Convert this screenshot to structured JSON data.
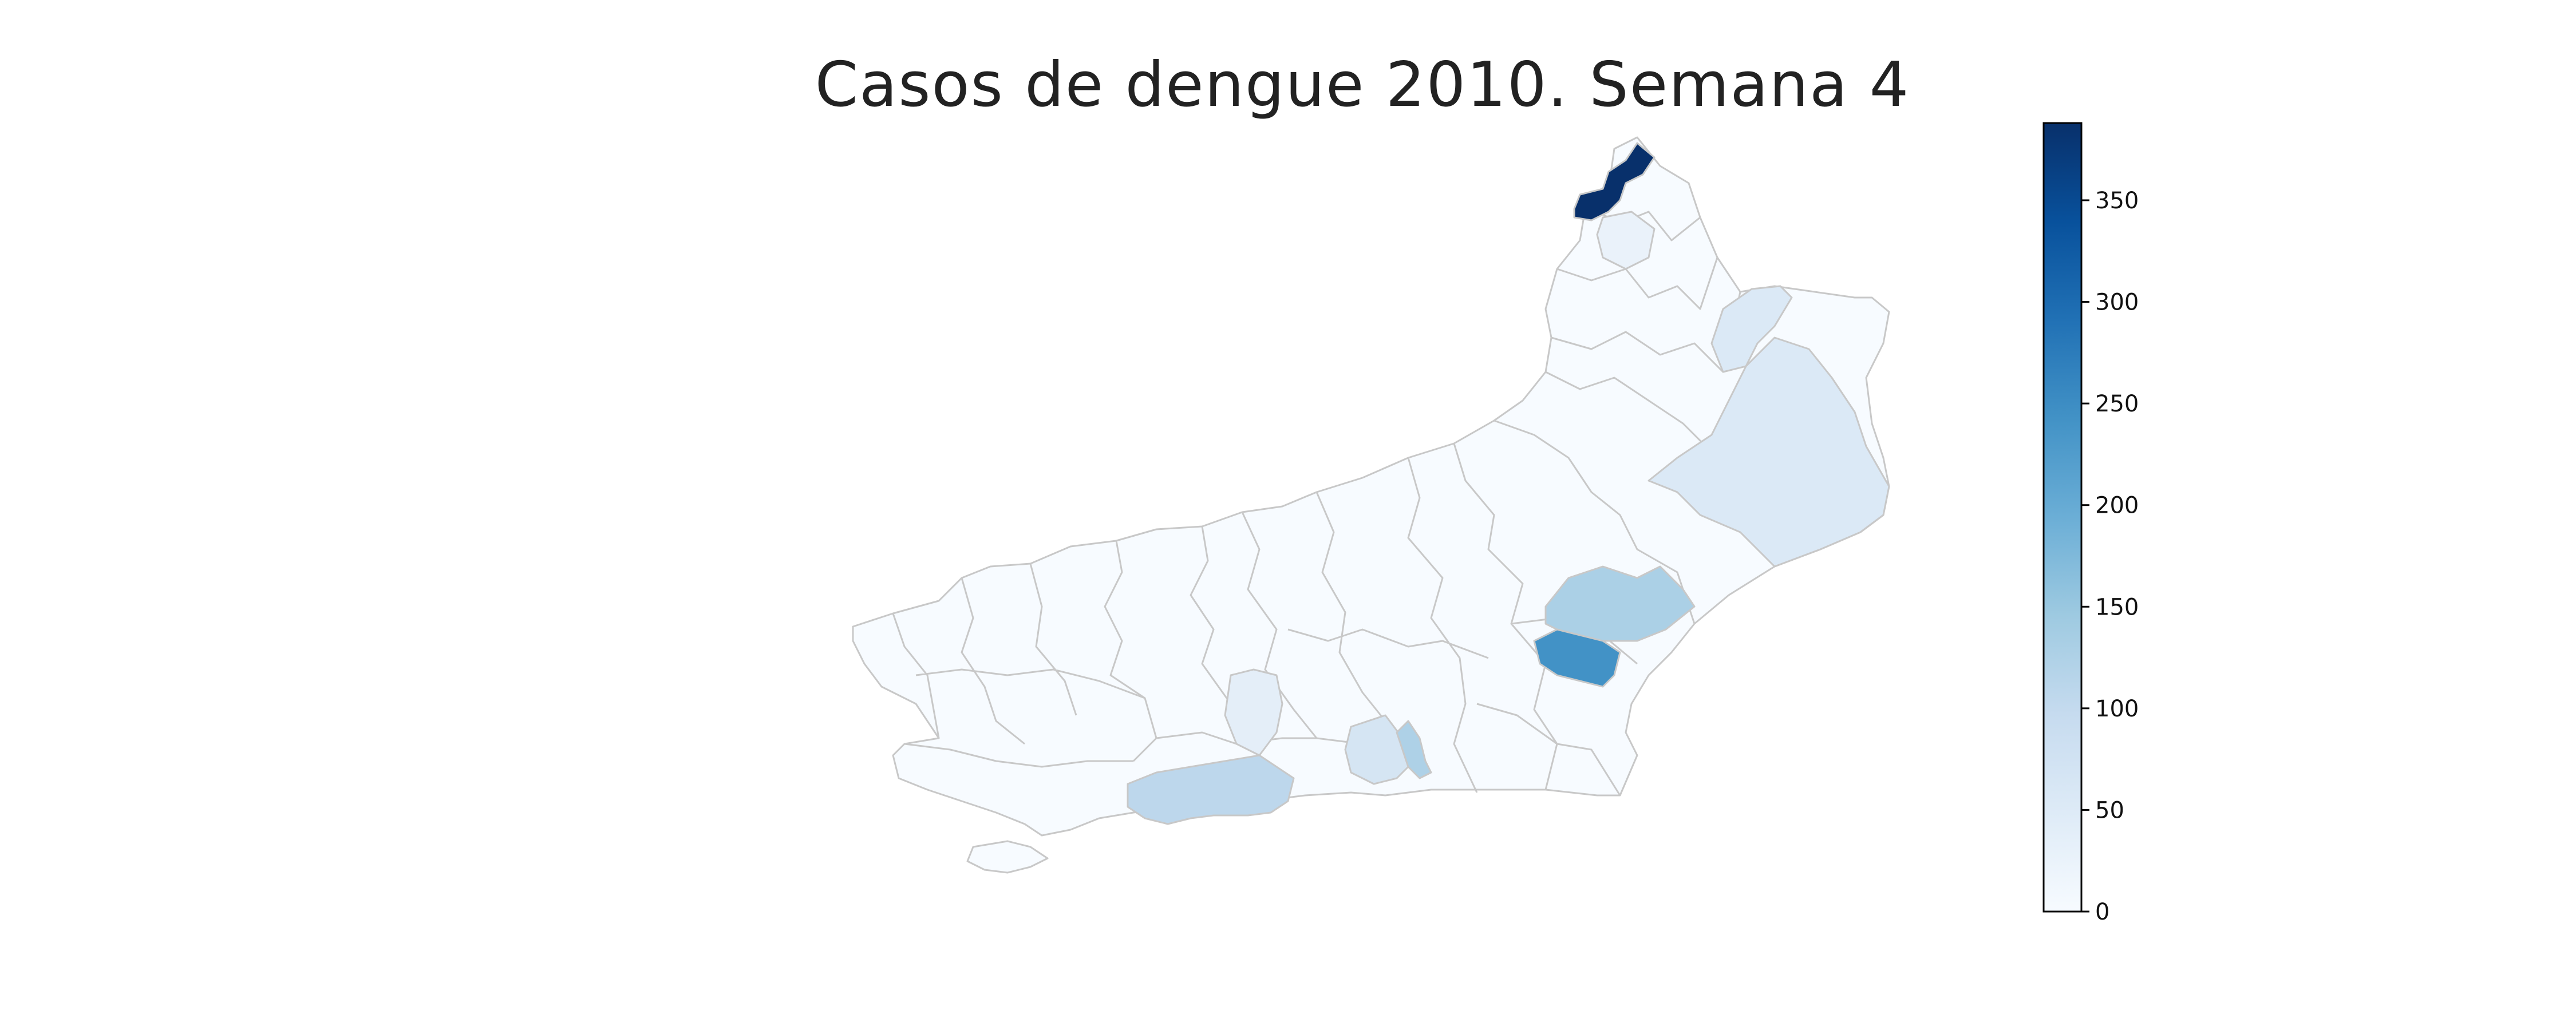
{
  "title": "Casos de dengue 2010. Semana 4",
  "chart_data": {
    "type": "choropleth",
    "title": "Casos de dengue 2010. Semana 4",
    "colormap": "Blues",
    "colorbar": {
      "range": [
        0,
        388
      ],
      "ticks": [
        0,
        50,
        100,
        150,
        200,
        250,
        300,
        350
      ],
      "tick_labels": [
        "0",
        "50",
        "100",
        "150",
        "200",
        "250",
        "300",
        "350"
      ]
    },
    "highlighted_regions": [
      {
        "id": "northern-tip",
        "value": 388
      },
      {
        "id": "central-east",
        "value": 240
      },
      {
        "id": "niteroi-area",
        "value": 145
      },
      {
        "id": "east-block",
        "value": 148
      },
      {
        "id": "rio-city",
        "value": 110
      },
      {
        "id": "baixada",
        "value": 95
      },
      {
        "id": "east-large",
        "value": 75
      },
      {
        "id": "northeast",
        "value": 70
      },
      {
        "id": "center-strip",
        "value": 45
      },
      {
        "id": "north-small",
        "value": 35
      }
    ],
    "default_value": 2
  }
}
